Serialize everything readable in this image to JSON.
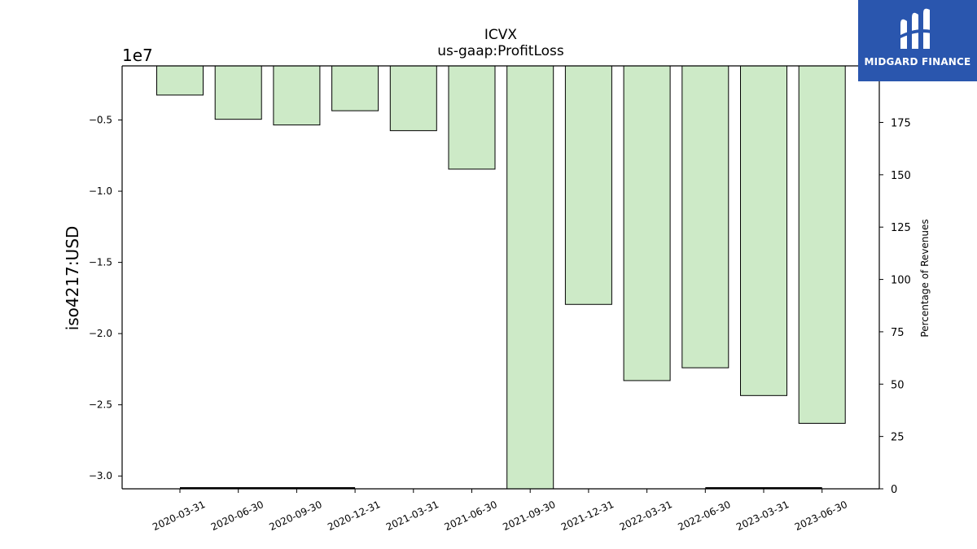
{
  "chart_data": {
    "type": "bar",
    "title": "ICVX",
    "subtitle": "us-gaap:ProfitLoss",
    "ylabel": "iso4217:USD",
    "y_offset_label": "1e7",
    "ylabel_right": "Percentage of Revenues",
    "categories": [
      "2020-03-31",
      "2020-06-30",
      "2020-09-30",
      "2020-12-31",
      "2021-03-31",
      "2021-06-30",
      "2021-09-30",
      "2021-12-31",
      "2022-03-31",
      "2022-06-30",
      "2023-03-31",
      "2023-06-30"
    ],
    "values": [
      -3250000,
      -4950000,
      -5350000,
      -4350000,
      -5750000,
      -8450000,
      -31000000,
      -17950000,
      -23300000,
      -22400000,
      -24350000,
      -26300000
    ],
    "ylim": [
      -30900000,
      -1200000
    ],
    "yticks": [
      -0.5,
      -1.0,
      -1.5,
      -2.0,
      -2.5,
      -3.0
    ],
    "yticks_labels": [
      "−0.5",
      "−1.0",
      "−1.5",
      "−2.0",
      "−2.5",
      "−3.0"
    ],
    "y2lim": [
      0,
      202
    ],
    "y2ticks": [
      0,
      25,
      50,
      75,
      100,
      125,
      150,
      175
    ],
    "percent_series": {
      "name": "",
      "values": [
        0,
        0,
        0,
        0,
        null,
        null,
        null,
        null,
        null,
        0,
        0,
        0
      ]
    },
    "grid": false,
    "bar_color": "#cdeac7",
    "bar_edge_color": "#000000"
  },
  "watermark": {
    "text": "MIDGARD FINANCE",
    "bg_color": "#2a56ae"
  }
}
